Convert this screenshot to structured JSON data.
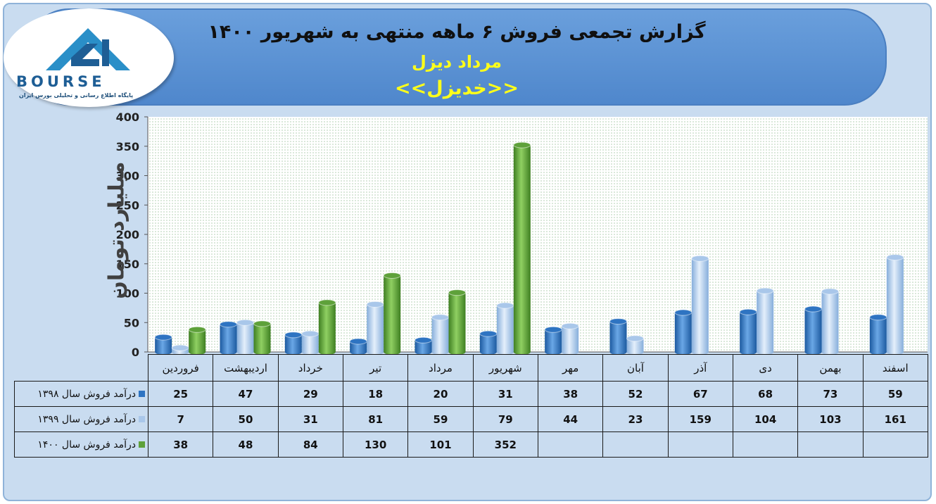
{
  "header": {
    "title": "گزارش تجمعی فروش ۶ ماهه منتهی به شهریور ۱۴۰۰",
    "subtitle": "مرداد دیزل",
    "company": "<<خدیزل>>"
  },
  "logo": {
    "text": "BOURSE",
    "tagline": "پایگاه اطلاع رسانی و تحلیلی بورس ایران"
  },
  "colors": {
    "s1398": "#2e74c2",
    "s1399": "#a9c7ea",
    "s1400": "#5ea13a",
    "banner": "#5b93d6",
    "title_yellow": "#ffff1a"
  },
  "chart_data": {
    "type": "bar",
    "ylabel": "میلیارد تومان",
    "ylim": [
      0,
      400
    ],
    "yticks": [
      0,
      50,
      100,
      150,
      200,
      250,
      300,
      350,
      400
    ],
    "grid": true,
    "categories": [
      "فروردین",
      "اردیبهشت",
      "خرداد",
      "تیر",
      "مرداد",
      "شهریور",
      "مهر",
      "آبان",
      "آذر",
      "دی",
      "بهمن",
      "اسفند"
    ],
    "series": [
      {
        "name": "درآمد فروش سال ۱۳۹۸",
        "values": [
          25,
          47,
          29,
          18,
          20,
          31,
          38,
          52,
          67,
          68,
          73,
          59
        ]
      },
      {
        "name": "درآمد فروش سال ۱۳۹۹",
        "values": [
          7,
          50,
          31,
          81,
          59,
          79,
          44,
          23,
          159,
          104,
          103,
          161
        ]
      },
      {
        "name": "درآمد فروش سال ۱۴۰۰",
        "values": [
          38,
          48,
          84,
          130,
          101,
          352,
          null,
          null,
          null,
          null,
          null,
          null
        ]
      }
    ]
  }
}
